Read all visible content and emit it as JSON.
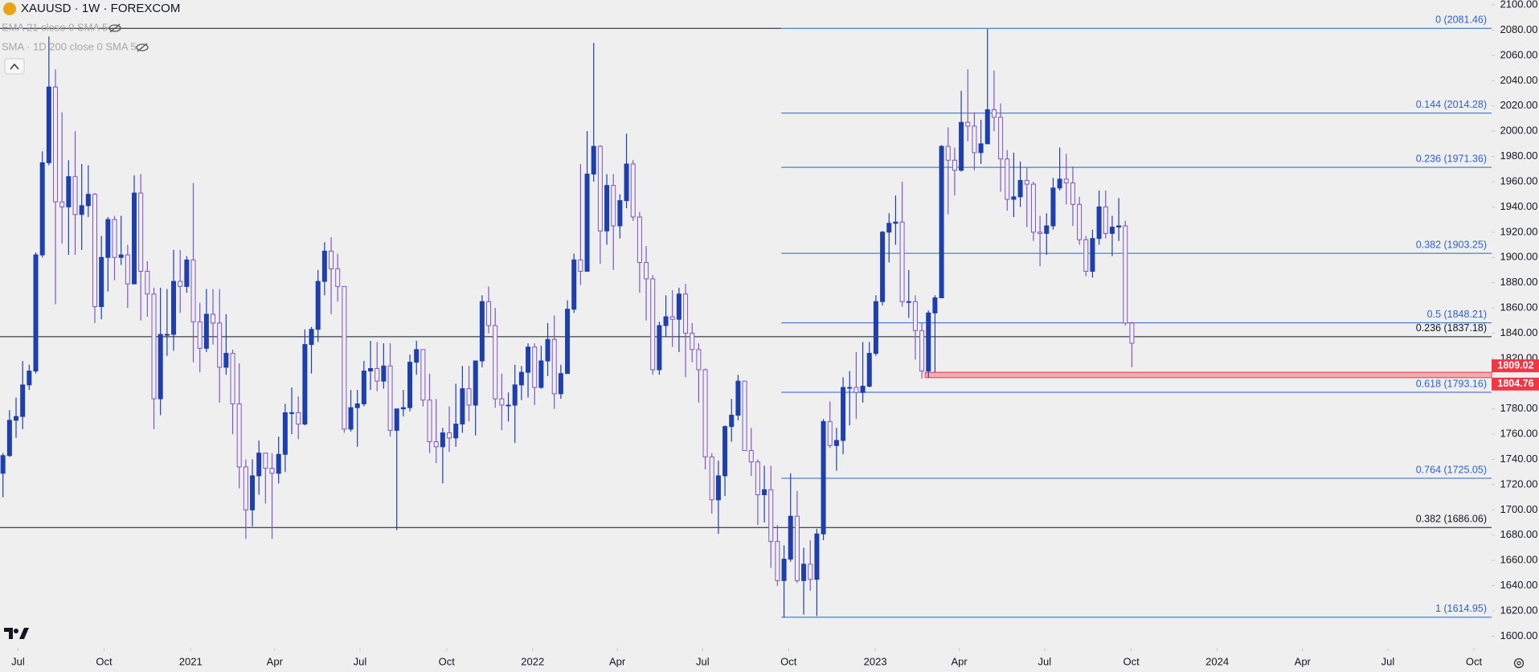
{
  "chart_data": {
    "type": "candlestick",
    "title": "XAUUSD · 1W · FOREXCOM",
    "indicators": [
      "EMA 21 close 0 SMA 5",
      "SMA · 1D 200 close 0 SMA 5"
    ],
    "up_color": "#1e3fae",
    "down_color": "#7e57c2",
    "grid": false,
    "xlim": [
      -0.45,
      226.8
    ],
    "xticks": [
      {
        "value": 2.3,
        "label": "Jul"
      },
      {
        "value": 15.4,
        "label": "Oct"
      },
      {
        "value": 28.6,
        "label": "2021"
      },
      {
        "value": 41.4,
        "label": "Apr"
      },
      {
        "value": 54.4,
        "label": "Jul"
      },
      {
        "value": 67.6,
        "label": "Oct"
      },
      {
        "value": 80.7,
        "label": "2022"
      },
      {
        "value": 93.6,
        "label": "Apr"
      },
      {
        "value": 106.6,
        "label": "Jul"
      },
      {
        "value": 119.7,
        "label": "Oct"
      },
      {
        "value": 132.9,
        "label": "2023"
      },
      {
        "value": 145.7,
        "label": "Apr"
      },
      {
        "value": 158.7,
        "label": "Jul"
      },
      {
        "value": 171.9,
        "label": "Oct"
      },
      {
        "value": 185,
        "label": "2024"
      },
      {
        "value": 198,
        "label": "Apr"
      },
      {
        "value": 211,
        "label": "Jul"
      },
      {
        "value": 224.1,
        "label": "Oct"
      }
    ],
    "ylim": [
      1590.7,
      2103.9
    ],
    "yticks": [
      {
        "value": 1600,
        "label": "1600.00"
      },
      {
        "value": 1620,
        "label": "1620.00"
      },
      {
        "value": 1640,
        "label": "1640.00"
      },
      {
        "value": 1660,
        "label": "1660.00"
      },
      {
        "value": 1680,
        "label": "1680.00"
      },
      {
        "value": 1700,
        "label": "1700.00"
      },
      {
        "value": 1720,
        "label": "1720.00"
      },
      {
        "value": 1740,
        "label": "1740.00"
      },
      {
        "value": 1760,
        "label": "1760.00"
      },
      {
        "value": 1780,
        "label": "1780.00"
      },
      {
        "value": 1800,
        "label": "1800.00"
      },
      {
        "value": 1820,
        "label": "1820.00"
      },
      {
        "value": 1840,
        "label": "1840.00"
      },
      {
        "value": 1860,
        "label": "1860.00"
      },
      {
        "value": 1880,
        "label": "1880.00"
      },
      {
        "value": 1900,
        "label": "1900.00"
      },
      {
        "value": 1920,
        "label": "1920.00"
      },
      {
        "value": 1940,
        "label": "1940.00"
      },
      {
        "value": 1960,
        "label": "1960.00"
      },
      {
        "value": 1980,
        "label": "1980.00"
      },
      {
        "value": 2000,
        "label": "2000.00"
      },
      {
        "value": 2020,
        "label": "2020.00"
      },
      {
        "value": 2040,
        "label": "2040.00"
      },
      {
        "value": 2060,
        "label": "2060.00"
      },
      {
        "value": 2080,
        "label": "2080.00"
      },
      {
        "value": 2100,
        "label": "2100.00"
      }
    ],
    "fib_color": "#2f5fd0",
    "fib_levels": [
      {
        "value": 2081.46,
        "label": "0 (2081.46)"
      },
      {
        "value": 2014.28,
        "label": "0.144 (2014.28)"
      },
      {
        "value": 1971.36,
        "label": "0.236 (1971.36)"
      },
      {
        "value": 1903.25,
        "label": "0.382 (1903.25)"
      },
      {
        "value": 1848.21,
        "label": "0.5 (1848.21)"
      },
      {
        "value": 1793.16,
        "label": "0.618 (1793.16)"
      },
      {
        "value": 1725.05,
        "label": "0.764 (1725.05)"
      },
      {
        "value": 1614.95,
        "label": "1 (1614.95)"
      }
    ],
    "levels_color": "#131722",
    "levels": [
      {
        "value": 1837.18,
        "label": "0.236 (1837.18)"
      },
      {
        "value": 1686.06,
        "label": "0.382 (1686.06)"
      }
    ],
    "zone": {
      "high": 1809.02,
      "low": 1804.76,
      "color": "#f23645"
    },
    "candles": [
      [
        1729,
        1745,
        1710,
        1743
      ],
      [
        1743,
        1779,
        1742,
        1771
      ],
      [
        1771,
        1789,
        1757,
        1774
      ],
      [
        1774,
        1818,
        1764,
        1799
      ],
      [
        1799,
        1815,
        1795,
        1810
      ],
      [
        1810,
        1904,
        1808,
        1902
      ],
      [
        1902,
        1984,
        1900,
        1975
      ],
      [
        1975,
        2075,
        1973,
        2035
      ],
      [
        2035,
        2049,
        1863,
        1944
      ],
      [
        1944,
        2015,
        1911,
        1940
      ],
      [
        1940,
        1977,
        1902,
        1964
      ],
      [
        1964,
        2000,
        1902,
        1934
      ],
      [
        1934,
        1974,
        1906,
        1941
      ],
      [
        1941,
        1973,
        1932,
        1950
      ],
      [
        1950,
        1951,
        1848,
        1861
      ],
      [
        1861,
        1917,
        1851,
        1900
      ],
      [
        1900,
        1932,
        1873,
        1930
      ],
      [
        1930,
        1933,
        1882,
        1900
      ],
      [
        1900,
        1933,
        1894,
        1902
      ],
      [
        1902,
        1910,
        1860,
        1879
      ],
      [
        1879,
        1965,
        1879,
        1951
      ],
      [
        1951,
        1966,
        1850,
        1889
      ],
      [
        1889,
        1897,
        1853,
        1871
      ],
      [
        1871,
        1876,
        1764,
        1788
      ],
      [
        1788,
        1876,
        1775,
        1839
      ],
      [
        1839,
        1875,
        1822,
        1839
      ],
      [
        1839,
        1906,
        1826,
        1881
      ],
      [
        1881,
        1906,
        1856,
        1877
      ],
      [
        1877,
        1901,
        1872,
        1898
      ],
      [
        1898,
        1959,
        1817,
        1849
      ],
      [
        1849,
        1864,
        1809,
        1828
      ],
      [
        1828,
        1875,
        1825,
        1855
      ],
      [
        1855,
        1875,
        1831,
        1848
      ],
      [
        1848,
        1875,
        1785,
        1813
      ],
      [
        1813,
        1855,
        1807,
        1824
      ],
      [
        1824,
        1827,
        1760,
        1784
      ],
      [
        1784,
        1816,
        1717,
        1734
      ],
      [
        1734,
        1740,
        1677,
        1700
      ],
      [
        1700,
        1740,
        1687,
        1727
      ],
      [
        1727,
        1755,
        1712,
        1745
      ],
      [
        1745,
        1745,
        1705,
        1733
      ],
      [
        1733,
        1745,
        1677,
        1729
      ],
      [
        1729,
        1758,
        1721,
        1744
      ],
      [
        1744,
        1784,
        1730,
        1777
      ],
      [
        1777,
        1797,
        1760,
        1777
      ],
      [
        1777,
        1790,
        1756,
        1768
      ],
      [
        1768,
        1843,
        1767,
        1831
      ],
      [
        1831,
        1845,
        1808,
        1843
      ],
      [
        1843,
        1890,
        1833,
        1881
      ],
      [
        1881,
        1912,
        1870,
        1905
      ],
      [
        1905,
        1916,
        1855,
        1891
      ],
      [
        1891,
        1903,
        1865,
        1877
      ],
      [
        1877,
        1877,
        1761,
        1764
      ],
      [
        1764,
        1795,
        1762,
        1781
      ],
      [
        1781,
        1795,
        1750,
        1784
      ],
      [
        1784,
        1818,
        1782,
        1810
      ],
      [
        1810,
        1834,
        1795,
        1812
      ],
      [
        1812,
        1833,
        1794,
        1802
      ],
      [
        1802,
        1832,
        1796,
        1814
      ],
      [
        1814,
        1832,
        1758,
        1763
      ],
      [
        1763,
        1780,
        1684,
        1780
      ],
      [
        1780,
        1795,
        1774,
        1781
      ],
      [
        1781,
        1823,
        1778,
        1817
      ],
      [
        1817,
        1834,
        1807,
        1827
      ],
      [
        1827,
        1827,
        1782,
        1787
      ],
      [
        1787,
        1808,
        1745,
        1754
      ],
      [
        1754,
        1788,
        1737,
        1750
      ],
      [
        1750,
        1765,
        1721,
        1761
      ],
      [
        1761,
        1782,
        1746,
        1757
      ],
      [
        1757,
        1800,
        1750,
        1768
      ],
      [
        1768,
        1814,
        1761,
        1796
      ],
      [
        1796,
        1814,
        1770,
        1783
      ],
      [
        1783,
        1818,
        1759,
        1818
      ],
      [
        1818,
        1870,
        1813,
        1865
      ],
      [
        1865,
        1877,
        1840,
        1846
      ],
      [
        1846,
        1860,
        1781,
        1788
      ],
      [
        1788,
        1808,
        1763,
        1783
      ],
      [
        1783,
        1793,
        1770,
        1783
      ],
      [
        1783,
        1815,
        1753,
        1799
      ],
      [
        1799,
        1814,
        1787,
        1809
      ],
      [
        1809,
        1832,
        1789,
        1829
      ],
      [
        1829,
        1832,
        1783,
        1797
      ],
      [
        1797,
        1830,
        1796,
        1818
      ],
      [
        1818,
        1848,
        1806,
        1835
      ],
      [
        1835,
        1854,
        1780,
        1792
      ],
      [
        1792,
        1815,
        1788,
        1808
      ],
      [
        1808,
        1866,
        1808,
        1859
      ],
      [
        1859,
        1903,
        1856,
        1898
      ],
      [
        1898,
        1974,
        1878,
        1889
      ],
      [
        1889,
        2000,
        1889,
        1966
      ],
      [
        1966,
        2070,
        1960,
        1988
      ],
      [
        1988,
        1989,
        1895,
        1921
      ],
      [
        1921,
        1966,
        1910,
        1957
      ],
      [
        1957,
        1966,
        1890,
        1925
      ],
      [
        1925,
        1950,
        1915,
        1945
      ],
      [
        1945,
        1998,
        1939,
        1974
      ],
      [
        1974,
        1977,
        1929,
        1932
      ],
      [
        1932,
        1936,
        1872,
        1896
      ],
      [
        1896,
        1909,
        1850,
        1883
      ],
      [
        1883,
        1886,
        1807,
        1811
      ],
      [
        1811,
        1849,
        1807,
        1846
      ],
      [
        1846,
        1870,
        1837,
        1853
      ],
      [
        1853,
        1874,
        1829,
        1851
      ],
      [
        1851,
        1876,
        1825,
        1871
      ],
      [
        1871,
        1879,
        1805,
        1840
      ],
      [
        1840,
        1848,
        1817,
        1827
      ],
      [
        1827,
        1832,
        1785,
        1811
      ],
      [
        1811,
        1812,
        1732,
        1742
      ],
      [
        1742,
        1745,
        1697,
        1708
      ],
      [
        1708,
        1739,
        1681,
        1727
      ],
      [
        1727,
        1767,
        1711,
        1766
      ],
      [
        1766,
        1788,
        1754,
        1775
      ],
      [
        1775,
        1807,
        1771,
        1802
      ],
      [
        1802,
        1802,
        1747,
        1747
      ],
      [
        1747,
        1765,
        1727,
        1738
      ],
      [
        1738,
        1740,
        1688,
        1712
      ],
      [
        1712,
        1735,
        1690,
        1716
      ],
      [
        1716,
        1735,
        1654,
        1675
      ],
      [
        1675,
        1688,
        1640,
        1644
      ],
      [
        1644,
        1672,
        1615,
        1661
      ],
      [
        1661,
        1729,
        1659,
        1695
      ],
      [
        1695,
        1715,
        1642,
        1644
      ],
      [
        1644,
        1670,
        1617,
        1657
      ],
      [
        1657,
        1676,
        1636,
        1645
      ],
      [
        1645,
        1685,
        1616,
        1681
      ],
      [
        1681,
        1772,
        1676,
        1770
      ],
      [
        1770,
        1786,
        1749,
        1751
      ],
      [
        1751,
        1765,
        1731,
        1755
      ],
      [
        1755,
        1805,
        1744,
        1797
      ],
      [
        1797,
        1810,
        1767,
        1797
      ],
      [
        1797,
        1825,
        1772,
        1793
      ],
      [
        1793,
        1833,
        1785,
        1798
      ],
      [
        1798,
        1833,
        1797,
        1824
      ],
      [
        1824,
        1870,
        1822,
        1865
      ],
      [
        1865,
        1921,
        1862,
        1920
      ],
      [
        1920,
        1935,
        1896,
        1927
      ],
      [
        1927,
        1949,
        1910,
        1928
      ],
      [
        1928,
        1960,
        1861,
        1865
      ],
      [
        1865,
        1890,
        1852,
        1865
      ],
      [
        1865,
        1870,
        1819,
        1842
      ],
      [
        1842,
        1848,
        1804,
        1810
      ],
      [
        1810,
        1858,
        1805,
        1856
      ],
      [
        1856,
        1870,
        1809,
        1868
      ],
      [
        1868,
        1989,
        1868,
        1988
      ],
      [
        1988,
        2003,
        1934,
        1977
      ],
      [
        1977,
        1987,
        1949,
        1969
      ],
      [
        1969,
        2032,
        1968,
        2007
      ],
      [
        2007,
        2049,
        1992,
        2004
      ],
      [
        2004,
        2015,
        1969,
        1983
      ],
      [
        1983,
        2009,
        1974,
        1990
      ],
      [
        1990,
        2081,
        1990,
        2017
      ],
      [
        2017,
        2048,
        2000,
        2011
      ],
      [
        2011,
        2022,
        1952,
        1978
      ],
      [
        1978,
        1985,
        1937,
        1946
      ],
      [
        1946,
        1983,
        1932,
        1948
      ],
      [
        1948,
        1976,
        1940,
        1961
      ],
      [
        1961,
        1971,
        1924,
        1958
      ],
      [
        1958,
        1960,
        1913,
        1920
      ],
      [
        1920,
        1933,
        1893,
        1919
      ],
      [
        1919,
        1935,
        1902,
        1925
      ],
      [
        1925,
        1963,
        1922,
        1955
      ],
      [
        1955,
        1987,
        1953,
        1962
      ],
      [
        1962,
        1982,
        1942,
        1959
      ],
      [
        1959,
        1972,
        1925,
        1942
      ],
      [
        1942,
        1948,
        1910,
        1914
      ],
      [
        1914,
        1917,
        1885,
        1889
      ],
      [
        1889,
        1922,
        1884,
        1915
      ],
      [
        1915,
        1953,
        1910,
        1940
      ],
      [
        1940,
        1953,
        1915,
        1919
      ],
      [
        1919,
        1933,
        1901,
        1924
      ],
      [
        1924,
        1947,
        1913,
        1925
      ],
      [
        1925,
        1929,
        1846,
        1848
      ],
      [
        1848,
        1849,
        1813,
        1832
      ]
    ]
  }
}
